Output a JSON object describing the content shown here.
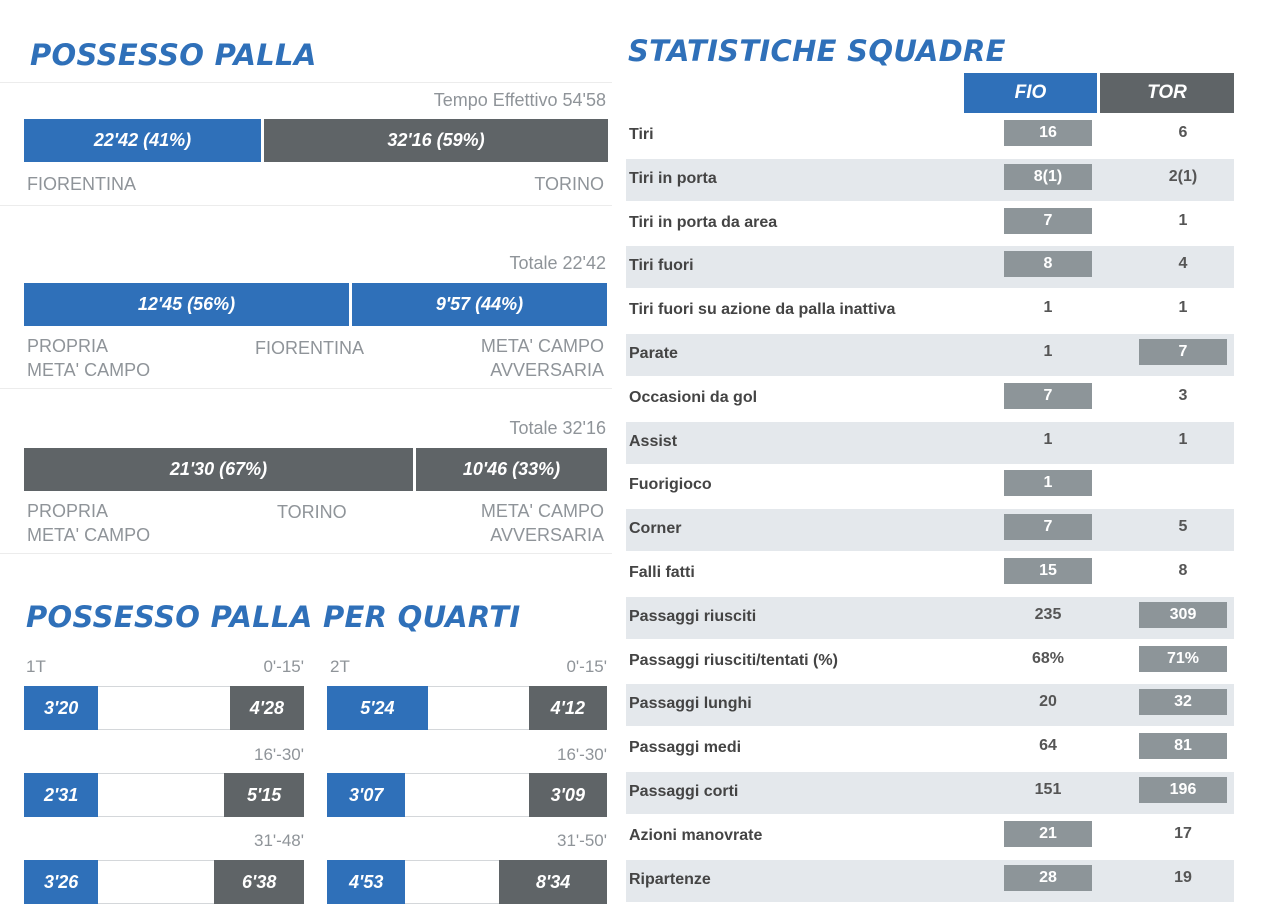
{
  "possesso": {
    "title": "POSSESSO PALLA",
    "tempo_label": "Tempo Effettivo 54'58",
    "main_bar": {
      "fio_label": "22'42 (41%)",
      "fio_pct": 41,
      "tor_label": "32'16 (59%)",
      "tor_pct": 59
    },
    "team_left": "FIORENTINA",
    "team_right": "TORINO",
    "fio": {
      "total_label": "Totale 22'42",
      "own_label": "12'45 (56%)",
      "own_pct": 56,
      "opp_label": "9'57 (44%)",
      "opp_pct": 44,
      "team": "FIORENTINA"
    },
    "tor": {
      "total_label": "Totale 32'16",
      "own_label": "21'30 (67%)",
      "own_pct": 67,
      "opp_label": "10'46 (33%)",
      "opp_pct": 33,
      "team": "TORINO"
    },
    "own_half_line1": "PROPRIA",
    "own_half_line2": "META' CAMPO",
    "opp_half_line1": "META' CAMPO",
    "opp_half_line2": "AVVERSARIA"
  },
  "quarti": {
    "title": "POSSESSO PALLA PER QUARTI",
    "first_half": {
      "label": "1T",
      "rows": [
        {
          "range": "0'-15'",
          "fio": "3'20",
          "tor": "4'28",
          "fio_pct": 26.5,
          "tor_pct": 26.5
        },
        {
          "range": "16'-30'",
          "fio": "2'31",
          "tor": "5'15",
          "fio_pct": 26.5,
          "tor_pct": 28.5
        },
        {
          "range": "31'-48'",
          "fio": "3'26",
          "tor": "6'38",
          "fio_pct": 26.5,
          "tor_pct": 32
        }
      ]
    },
    "second_half": {
      "label": "2T",
      "rows": [
        {
          "range": "0'-15'",
          "fio": "5'24",
          "tor": "4'12",
          "fio_pct": 36,
          "tor_pct": 28
        },
        {
          "range": "16'-30'",
          "fio": "3'07",
          "tor": "3'09",
          "fio_pct": 28,
          "tor_pct": 28
        },
        {
          "range": "31'-50'",
          "fio": "4'53",
          "tor": "8'34",
          "fio_pct": 28,
          "tor_pct": 38.5
        }
      ]
    }
  },
  "stats": {
    "title": "STATISTICHE SQUADRE",
    "col_fio": "FIO",
    "col_tor": "TOR",
    "rows": [
      {
        "label": "Tiri",
        "fio": "16",
        "tor": "6",
        "hl": "fio"
      },
      {
        "label": "Tiri in porta",
        "fio": "8(1)",
        "tor": "2(1)",
        "hl": "fio"
      },
      {
        "label": "Tiri in porta da area",
        "fio": "7",
        "tor": "1",
        "hl": "fio"
      },
      {
        "label": "Tiri fuori",
        "fio": "8",
        "tor": "4",
        "hl": "fio"
      },
      {
        "label": "Tiri fuori su azione da palla inattiva",
        "fio": "1",
        "tor": "1",
        "hl": ""
      },
      {
        "label": "Parate",
        "fio": "1",
        "tor": "7",
        "hl": "tor"
      },
      {
        "label": "Occasioni da gol",
        "fio": "7",
        "tor": "3",
        "hl": "fio"
      },
      {
        "label": "Assist",
        "fio": "1",
        "tor": "1",
        "hl": ""
      },
      {
        "label": "Fuorigioco",
        "fio": "1",
        "tor": "",
        "hl": "fio"
      },
      {
        "label": "Corner",
        "fio": "7",
        "tor": "5",
        "hl": "fio"
      },
      {
        "label": "Falli fatti",
        "fio": "15",
        "tor": "8",
        "hl": "fio"
      },
      {
        "label": "Passaggi riusciti",
        "fio": "235",
        "tor": "309",
        "hl": "tor"
      },
      {
        "label": "Passaggi riusciti/tentati (%)",
        "fio": "68%",
        "tor": "71%",
        "hl": "tor"
      },
      {
        "label": "Passaggi lunghi",
        "fio": "20",
        "tor": "32",
        "hl": "tor"
      },
      {
        "label": "Passaggi medi",
        "fio": "64",
        "tor": "81",
        "hl": "tor"
      },
      {
        "label": "Passaggi corti",
        "fio": "151",
        "tor": "196",
        "hl": "tor"
      },
      {
        "label": "Azioni manovrate",
        "fio": "21",
        "tor": "17",
        "hl": "fio"
      },
      {
        "label": "Ripartenze",
        "fio": "28",
        "tor": "19",
        "hl": "fio"
      }
    ]
  },
  "colors": {
    "fiorentina": "#2f70b9",
    "torino": "#5f6467",
    "highlight": "#8d9599"
  }
}
